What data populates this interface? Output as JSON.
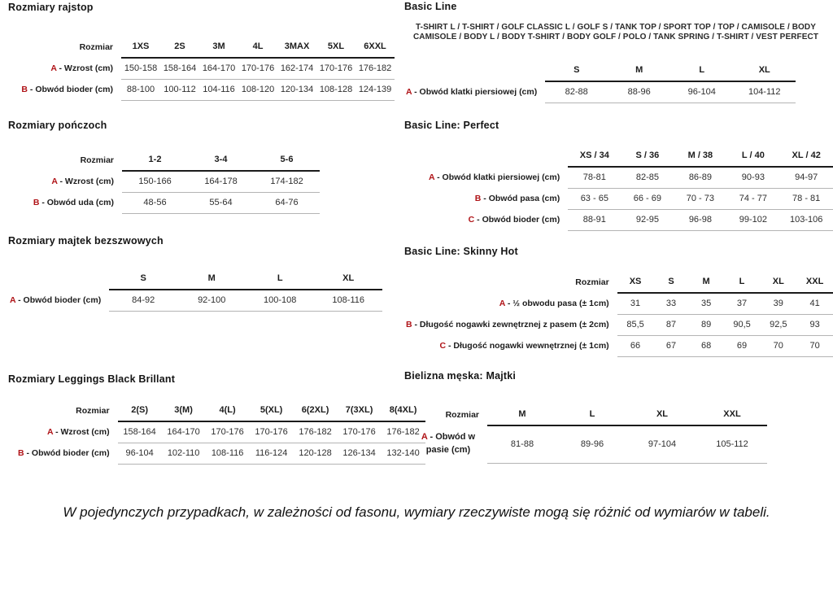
{
  "accent_red": "#b01418",
  "tables": {
    "rajstop": {
      "title": "Rozmiary rajstop",
      "corner_label": "Rozmiar",
      "columns": [
        "1XS",
        "2S",
        "3M",
        "4L",
        "3MAX",
        "5XL",
        "6XXL"
      ],
      "rows": [
        {
          "letter": "A",
          "label": "- Wzrost (cm)",
          "values": [
            "150-158",
            "158-164",
            "164-170",
            "170-176",
            "162-174",
            "170-176",
            "176-182"
          ]
        },
        {
          "letter": "B",
          "label": "- Obwód bioder (cm)",
          "values": [
            "88-100",
            "100-112",
            "104-116",
            "108-120",
            "120-134",
            "108-128",
            "124-139"
          ]
        }
      ]
    },
    "ponczoch": {
      "title": "Rozmiary pończoch",
      "corner_label": "Rozmiar",
      "columns": [
        "1-2",
        "3-4",
        "5-6"
      ],
      "rows": [
        {
          "letter": "A",
          "label": "- Wzrost (cm)",
          "values": [
            "150-166",
            "164-178",
            "174-182"
          ]
        },
        {
          "letter": "B",
          "label": "- Obwód uda (cm)",
          "values": [
            "48-56",
            "55-64",
            "64-76"
          ]
        }
      ]
    },
    "majtek": {
      "title": "Rozmiary majtek bezszwowych",
      "corner_label": "",
      "columns": [
        "S",
        "M",
        "L",
        "XL"
      ],
      "rows": [
        {
          "letter": "A",
          "label": "- Obwód bioder (cm)",
          "values": [
            "84-92",
            "92-100",
            "100-108",
            "108-116"
          ]
        }
      ]
    },
    "leggings": {
      "title": "Rozmiary Leggings Black Brillant",
      "corner_label": "Rozmiar",
      "columns": [
        "2(S)",
        "3(M)",
        "4(L)",
        "5(XL)",
        "6(2XL)",
        "7(3XL)",
        "8(4XL)"
      ],
      "rows": [
        {
          "letter": "A",
          "label": "- Wzrost (cm)",
          "values": [
            "158-164",
            "164-170",
            "170-176",
            "170-176",
            "176-182",
            "170-176",
            "176-182"
          ]
        },
        {
          "letter": "B",
          "label": "- Obwód bioder (cm)",
          "values": [
            "96-104",
            "102-110",
            "108-116",
            "116-124",
            "120-128",
            "126-134",
            "132-140"
          ]
        }
      ]
    },
    "basic": {
      "title": "Basic Line",
      "description": "T-SHIRT L / T-SHIRT / GOLF CLASSIC L / GOLF S / TANK TOP / SPORT TOP / TOP / CAMISOLE / BODY CAMISOLE / BODY L / BODY T-SHIRT / BODY GOLF / POLO / TANK SPRING / T-SHIRT / VEST PERFECT",
      "corner_label": "",
      "columns": [
        "S",
        "M",
        "L",
        "XL"
      ],
      "rows": [
        {
          "letter": "A",
          "label": "- Obwód klatki piersiowej (cm)",
          "values": [
            "82-88",
            "88-96",
            "96-104",
            "104-112"
          ]
        }
      ]
    },
    "perfect": {
      "title": "Basic Line: Perfect",
      "corner_label": "",
      "columns": [
        "XS / 34",
        "S / 36",
        "M / 38",
        "L / 40",
        "XL / 42"
      ],
      "rows": [
        {
          "letter": "A",
          "label": "- Obwód klatki piersiowej (cm)",
          "values": [
            "78-81",
            "82-85",
            "86-89",
            "90-93",
            "94-97"
          ]
        },
        {
          "letter": "B",
          "label": "- Obwód pasa (cm)",
          "values": [
            "63 - 65",
            "66 - 69",
            "70 - 73",
            "74 - 77",
            "78 - 81"
          ]
        },
        {
          "letter": "C",
          "label": "- Obwód bioder (cm)",
          "values": [
            "88-91",
            "92-95",
            "96-98",
            "99-102",
            "103-106"
          ]
        }
      ]
    },
    "skinny": {
      "title": "Basic Line: Skinny Hot",
      "corner_label": "Rozmiar",
      "columns": [
        "XS",
        "S",
        "M",
        "L",
        "XL",
        "XXL"
      ],
      "rows": [
        {
          "letter": "A",
          "label": "- ½ obwodu pasa (± 1cm)",
          "values": [
            "31",
            "33",
            "35",
            "37",
            "39",
            "41"
          ]
        },
        {
          "letter": "B",
          "label": "- Długość nogawki zewnętrznej z pasem (± 2cm)",
          "values": [
            "85,5",
            "87",
            "89",
            "90,5",
            "92,5",
            "93"
          ]
        },
        {
          "letter": "C",
          "label": "- Długość nogawki wewnętrznej (± 1cm)",
          "values": [
            "66",
            "67",
            "68",
            "69",
            "70",
            "70"
          ]
        }
      ]
    },
    "majtki": {
      "title": "Bielizna męska: Majtki",
      "corner_label": "Rozmiar",
      "columns": [
        "M",
        "L",
        "XL",
        "XXL"
      ],
      "rows": [
        {
          "letter": "A",
          "label": "- Obwód w pasie (cm)",
          "values": [
            "81-88",
            "89-96",
            "97-104",
            "105-112"
          ]
        }
      ]
    }
  },
  "footnote": "W pojedynczych przypadkach, w zależności od fasonu, wymiary rzeczywiste mogą się różnić od wymiarów w tabeli."
}
